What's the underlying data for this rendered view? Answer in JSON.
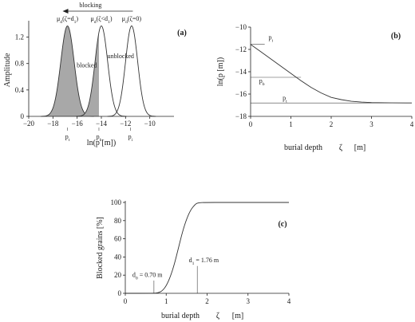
{
  "chart_data": [
    {
      "panel": "(a)",
      "type": "area",
      "ylabel": "Amplitude",
      "xlabel": "ln(p [m])",
      "xlim": [
        -20,
        -8
      ],
      "ylim": [
        0,
        1.4
      ],
      "xticks": [
        -20,
        -18,
        -16,
        -14,
        -12,
        -10
      ],
      "yticks": [
        0,
        0.4,
        0.8,
        1.2
      ],
      "tick_labels_x": [
        "−20",
        "−18",
        "−16",
        "−14",
        "−12",
        "−10"
      ],
      "tick_labels_y": [
        "0",
        "0.4",
        "0.8",
        "1.2"
      ],
      "series": [
        {
          "label": "μd(ζ=d1)",
          "mu": -16.8,
          "sigma": 0.55,
          "peak": 1.37,
          "style": "filled"
        },
        {
          "label": "μd(ζ<d1)",
          "mu": -14.0,
          "sigma": 0.52,
          "peak": 1.37,
          "style": "partially-filled",
          "fill_below_x": -14.2
        },
        {
          "label": "μd(ζ=0)",
          "mu": -11.5,
          "sigma": 0.5,
          "peak": 1.37,
          "style": "outline"
        }
      ],
      "annotations": [
        {
          "text": "blocking",
          "x": -14.9,
          "y": 1.58
        },
        {
          "text": "blocked",
          "x": -15.2,
          "y": 0.74
        },
        {
          "text": "unblocked",
          "x": -12.4,
          "y": 0.88
        }
      ],
      "marker_ticks": [
        {
          "text": "pt",
          "main": "p",
          "sub": "t",
          "x": -16.8
        },
        {
          "text": "pb",
          "main": "p",
          "sub": "b",
          "x": -14.2
        },
        {
          "text": "pi",
          "main": "p",
          "sub": "i",
          "x": -11.6
        }
      ],
      "title_labels": [
        {
          "main": "μ",
          "sub": "d",
          "rest": "(ζ=d",
          "sub2": "1",
          "close": ")",
          "x": -16.8
        },
        {
          "main": "μ",
          "sub": "d",
          "rest": "(ζ<d",
          "sub2": "1",
          "close": ")",
          "x": -14.0
        },
        {
          "main": "μ",
          "sub": "d",
          "rest": "(ζ=0)",
          "sub2": "",
          "close": "",
          "x": -11.5
        }
      ]
    },
    {
      "panel": "(b)",
      "type": "line",
      "ylabel": "ln(p [m])",
      "xlabel_parts": {
        "text": "burial depth",
        "symbol": "ζ",
        "unit": "[m]"
      },
      "xlim": [
        0,
        4
      ],
      "ylim": [
        -18,
        -10
      ],
      "xticks": [
        0,
        1,
        2,
        3,
        4
      ],
      "yticks": [
        -18,
        -16,
        -14,
        -12,
        -10
      ],
      "tick_labels_x": [
        "0",
        "1",
        "2",
        "3",
        "4"
      ],
      "tick_labels_y": [
        "−18",
        "−16",
        "−14",
        "−12",
        "−10"
      ],
      "series": [
        {
          "x": [
            0,
            0.25,
            0.5,
            0.75,
            1.0,
            1.25,
            1.5,
            1.75,
            2.0,
            2.25,
            2.5,
            2.75,
            3.0,
            3.5,
            4.0
          ],
          "y": [
            -11.55,
            -12.2,
            -12.85,
            -13.5,
            -14.15,
            -14.8,
            -15.4,
            -15.9,
            -16.3,
            -16.5,
            -16.65,
            -16.72,
            -16.76,
            -16.79,
            -16.8
          ]
        }
      ],
      "reference_lines": [
        {
          "main": "p",
          "sub": "i",
          "y": -11.55
        },
        {
          "main": "p",
          "sub": "b",
          "y": -14.5
        },
        {
          "main": "p",
          "sub": "t",
          "y": -16.8
        }
      ]
    },
    {
      "panel": "(c)",
      "type": "line",
      "ylabel": "Blocked grains [%]",
      "xlabel_parts": {
        "text": "burial depth",
        "symbol": "ζ",
        "unit": "[m]"
      },
      "xlim": [
        0,
        4
      ],
      "ylim": [
        0,
        100
      ],
      "xticks": [
        0,
        1,
        2,
        3,
        4
      ],
      "yticks": [
        0,
        20,
        40,
        60,
        80,
        100
      ],
      "tick_labels_x": [
        "0",
        "1",
        "2",
        "3",
        "4"
      ],
      "tick_labels_y": [
        "0",
        "20",
        "40",
        "60",
        "80",
        "100"
      ],
      "series": [
        {
          "x": [
            0,
            0.7,
            0.8,
            0.9,
            1.0,
            1.1,
            1.2,
            1.3,
            1.4,
            1.5,
            1.6,
            1.7,
            1.76,
            1.9,
            2.5,
            4.0
          ],
          "y": [
            0,
            0,
            0.5,
            2.5,
            8,
            18,
            32,
            50,
            68,
            82,
            92,
            97.5,
            99.5,
            100,
            100,
            100
          ]
        }
      ],
      "markers": [
        {
          "main": "d",
          "sub": "0",
          "rest": " = 0.70 m",
          "x": 0.7,
          "y_top": 14
        },
        {
          "main": "d",
          "sub": "1",
          "rest": " = 1.76 m",
          "x": 1.76,
          "y_top": 30
        }
      ]
    }
  ]
}
